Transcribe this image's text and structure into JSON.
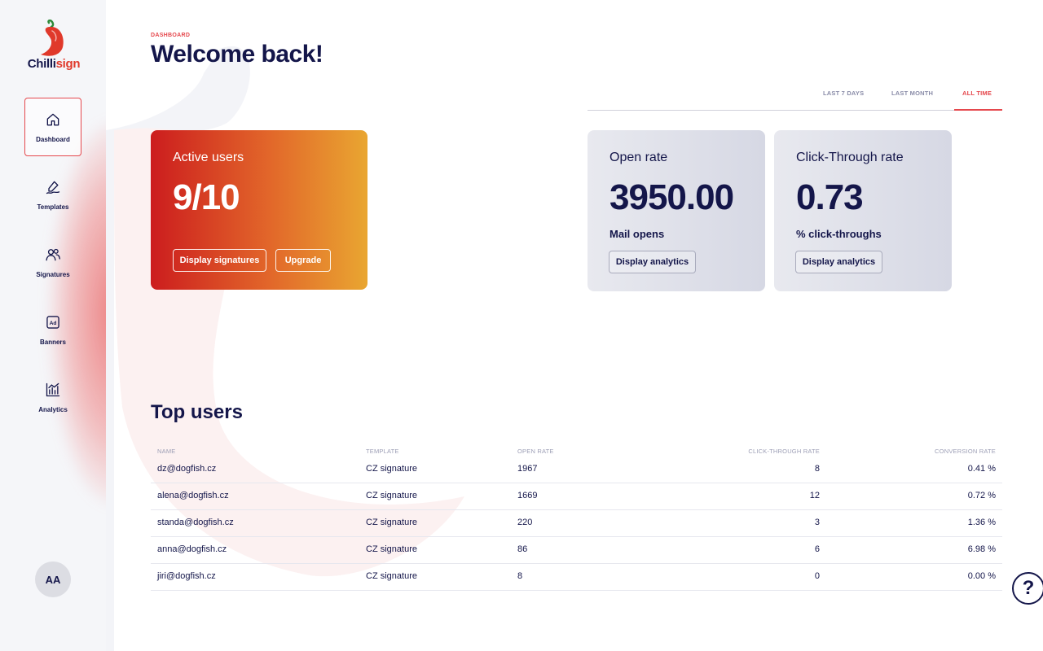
{
  "brand": {
    "logo_part1": "Chilli",
    "logo_part2": "sign",
    "accent": "#e5484d"
  },
  "sidebar": {
    "items": [
      {
        "label": "Dashboard",
        "icon": "home-icon"
      },
      {
        "label": "Templates",
        "icon": "signature-pen-icon"
      },
      {
        "label": "Signatures",
        "icon": "users-icon"
      },
      {
        "label": "Banners",
        "icon": "ad-icon"
      },
      {
        "label": "Analytics",
        "icon": "bar-chart-icon"
      }
    ],
    "avatar": "AA"
  },
  "header": {
    "breadcrumb": "DASHBOARD",
    "title": "Welcome back!"
  },
  "tabs": [
    {
      "label": "LAST 7 DAYS"
    },
    {
      "label": "LAST MONTH"
    },
    {
      "label": "ALL TIME"
    }
  ],
  "cards": {
    "active_users": {
      "title": "Active users",
      "value": "9/10",
      "btn_signatures": "Display signatures",
      "btn_upgrade": "Upgrade"
    },
    "open_rate": {
      "title": "Open rate",
      "value": "3950.00",
      "sub": "Mail opens",
      "btn": "Display analytics"
    },
    "ctr": {
      "title": "Click-Through rate",
      "value": "0.73",
      "sub": "% click-throughs",
      "btn": "Display analytics"
    }
  },
  "top_users": {
    "title": "Top users",
    "headers": [
      "NAME",
      "TEMPLATE",
      "OPEN RATE",
      "CLICK-THROUGH RATE",
      "CONVERSION RATE"
    ],
    "rows": [
      {
        "name": "dz@dogfish.cz",
        "template": "CZ signature",
        "open": "1967",
        "ctr": "8",
        "conv": "0.41 %"
      },
      {
        "name": "alena@dogfish.cz",
        "template": "CZ signature",
        "open": "1669",
        "ctr": "12",
        "conv": "0.72 %"
      },
      {
        "name": "standa@dogfish.cz",
        "template": "CZ signature",
        "open": "220",
        "ctr": "3",
        "conv": "1.36 %"
      },
      {
        "name": "anna@dogfish.cz",
        "template": "CZ signature",
        "open": "86",
        "ctr": "6",
        "conv": "6.98 %"
      },
      {
        "name": "jiri@dogfish.cz",
        "template": "CZ signature",
        "open": "8",
        "ctr": "0",
        "conv": "0.00 %"
      }
    ]
  },
  "help": {
    "label": "?"
  }
}
